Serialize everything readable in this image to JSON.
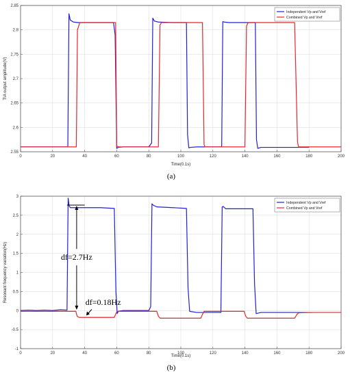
{
  "colors": {
    "blue": "#1f1fd6",
    "red": "#e8242c",
    "grid": "#d9d9d9",
    "axis": "#444444"
  },
  "chart_data": [
    {
      "type": "line",
      "caption": "(a)",
      "xlabel": "Time(0.1s)",
      "ylabel": "TIA output amplitude(V)",
      "xlim": [
        0,
        200
      ],
      "ylim": [
        2.55,
        2.85
      ],
      "xticks": [
        "0",
        "20",
        "40",
        "60",
        "80",
        "100",
        "120",
        "140",
        "160",
        "180",
        "200"
      ],
      "yticks": [
        "2.55",
        "2.6",
        "2.65",
        "2.7",
        "2.75",
        "2.8",
        "2.85"
      ],
      "grid": true,
      "legend_position": "top-right",
      "series": [
        {
          "name": "Independent Vp and Vref",
          "color": "#1f1fd6",
          "x": [
            0,
            29.5,
            30.2,
            31,
            33,
            36,
            45,
            58,
            59,
            60,
            61,
            64,
            70,
            80,
            81.8,
            82.5,
            83.5,
            86,
            95,
            103.5,
            104.2,
            105,
            106,
            110,
            120,
            125.5,
            126.2,
            127,
            130,
            145,
            146.5,
            147.2,
            148,
            150,
            160,
            170,
            180
          ],
          "y": [
            2.56,
            2.56,
            2.833,
            2.82,
            2.816,
            2.815,
            2.815,
            2.815,
            2.79,
            2.557,
            2.559,
            2.56,
            2.56,
            2.56,
            2.568,
            2.824,
            2.818,
            2.816,
            2.815,
            2.815,
            2.585,
            2.558,
            2.559,
            2.56,
            2.56,
            2.56,
            2.817,
            2.816,
            2.815,
            2.815,
            2.815,
            2.575,
            2.557,
            2.559,
            2.559,
            2.559,
            2.559
          ]
        },
        {
          "name": "Combined Vp and Vref",
          "color": "#e8242c",
          "x": [
            0,
            34.8,
            35.5,
            37,
            45,
            59.3,
            60,
            61,
            70,
            86,
            87,
            88,
            100,
            113.5,
            114.5,
            115,
            125,
            140,
            141,
            142,
            150,
            171,
            172.8,
            173.5,
            180,
            190,
            200
          ],
          "y": [
            2.56,
            2.56,
            2.8,
            2.815,
            2.815,
            2.815,
            2.562,
            2.56,
            2.56,
            2.56,
            2.81,
            2.815,
            2.815,
            2.815,
            2.565,
            2.56,
            2.56,
            2.56,
            2.808,
            2.815,
            2.815,
            2.815,
            2.57,
            2.56,
            2.56,
            2.56,
            2.56
          ]
        }
      ]
    },
    {
      "type": "line",
      "caption": "(b)",
      "xlabel": "Time(0.1s)",
      "ylabel": "Resonant frequency variation(Hz)",
      "xlim": [
        0,
        200
      ],
      "ylim": [
        -1,
        3
      ],
      "xticks": [
        "0",
        "20",
        "40",
        "60",
        "80",
        "100",
        "120",
        "140",
        "160",
        "180",
        "200"
      ],
      "yticks": [
        "-1",
        "-0.5",
        "0",
        "0.5",
        "1",
        "1.5",
        "2",
        "2.5",
        "3"
      ],
      "grid": true,
      "legend_position": "top-right",
      "series": [
        {
          "name": "Independent Vp and Vref",
          "color": "#1f1fd6",
          "x": [
            0,
            5,
            10,
            15,
            20,
            25,
            29,
            29.7,
            30.3,
            31,
            33,
            40,
            50,
            58.5,
            59.5,
            60.3,
            61,
            64,
            70,
            80,
            81.2,
            82,
            83,
            85,
            95,
            103.5,
            104.5,
            105.5,
            110,
            120,
            125,
            125.8,
            126.5,
            128,
            135,
            145,
            146,
            147,
            150,
            160,
            170,
            182
          ],
          "y": [
            0,
            0.01,
            0,
            0.01,
            0,
            0.02,
            0.01,
            2.95,
            2.75,
            2.7,
            2.7,
            2.7,
            2.7,
            2.68,
            0.5,
            -0.08,
            -0.02,
            0,
            0,
            0,
            0.1,
            2.8,
            2.76,
            2.72,
            2.7,
            2.68,
            0.6,
            -0.02,
            -0.05,
            -0.05,
            -0.05,
            2.72,
            2.73,
            2.67,
            2.67,
            2.67,
            0.7,
            -0.08,
            -0.05,
            -0.05,
            -0.05,
            -0.05
          ]
        },
        {
          "name": "Combined Vp and Vref",
          "color": "#e8242c",
          "x": [
            0,
            10,
            20,
            34.5,
            35.3,
            36.5,
            45,
            58.5,
            59.3,
            60.2,
            70,
            85,
            86,
            87,
            100,
            112.5,
            113.5,
            114.5,
            125,
            139.5,
            140.5,
            141.5,
            155,
            171,
            172.5,
            173.5,
            180,
            190,
            200
          ],
          "y": [
            -0.02,
            -0.02,
            -0.02,
            -0.02,
            -0.15,
            -0.18,
            -0.18,
            -0.18,
            -0.1,
            -0.02,
            -0.02,
            -0.02,
            -0.15,
            -0.2,
            -0.2,
            -0.2,
            -0.1,
            -0.02,
            -0.02,
            -0.02,
            -0.15,
            -0.2,
            -0.2,
            -0.2,
            -0.1,
            -0.06,
            -0.05,
            -0.05,
            -0.05
          ]
        }
      ]
    }
  ],
  "annotations": {
    "df_large": "df=2.7Hz",
    "df_small": "df=0.18Hz"
  }
}
